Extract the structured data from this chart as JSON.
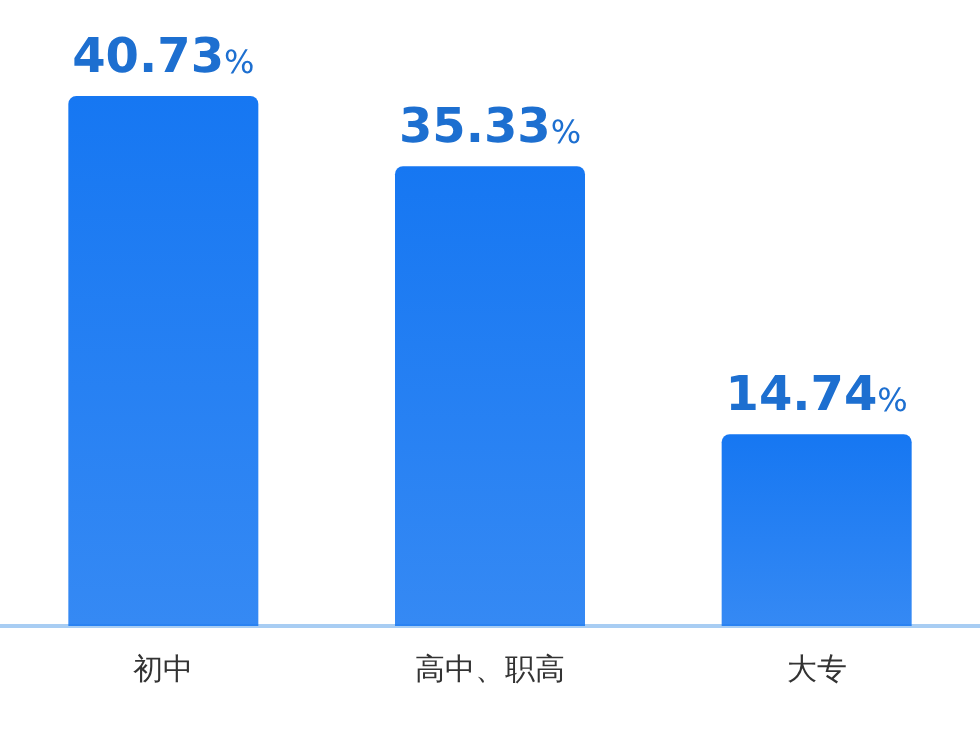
{
  "chart_data": {
    "type": "bar",
    "categories": [
      "初中",
      "高中、职高",
      "大专"
    ],
    "values": [
      40.73,
      35.33,
      14.74
    ],
    "color": "#1677f2",
    "value_labels": [
      "40.73%",
      "35.33%",
      "14.74%"
    ]
  }
}
